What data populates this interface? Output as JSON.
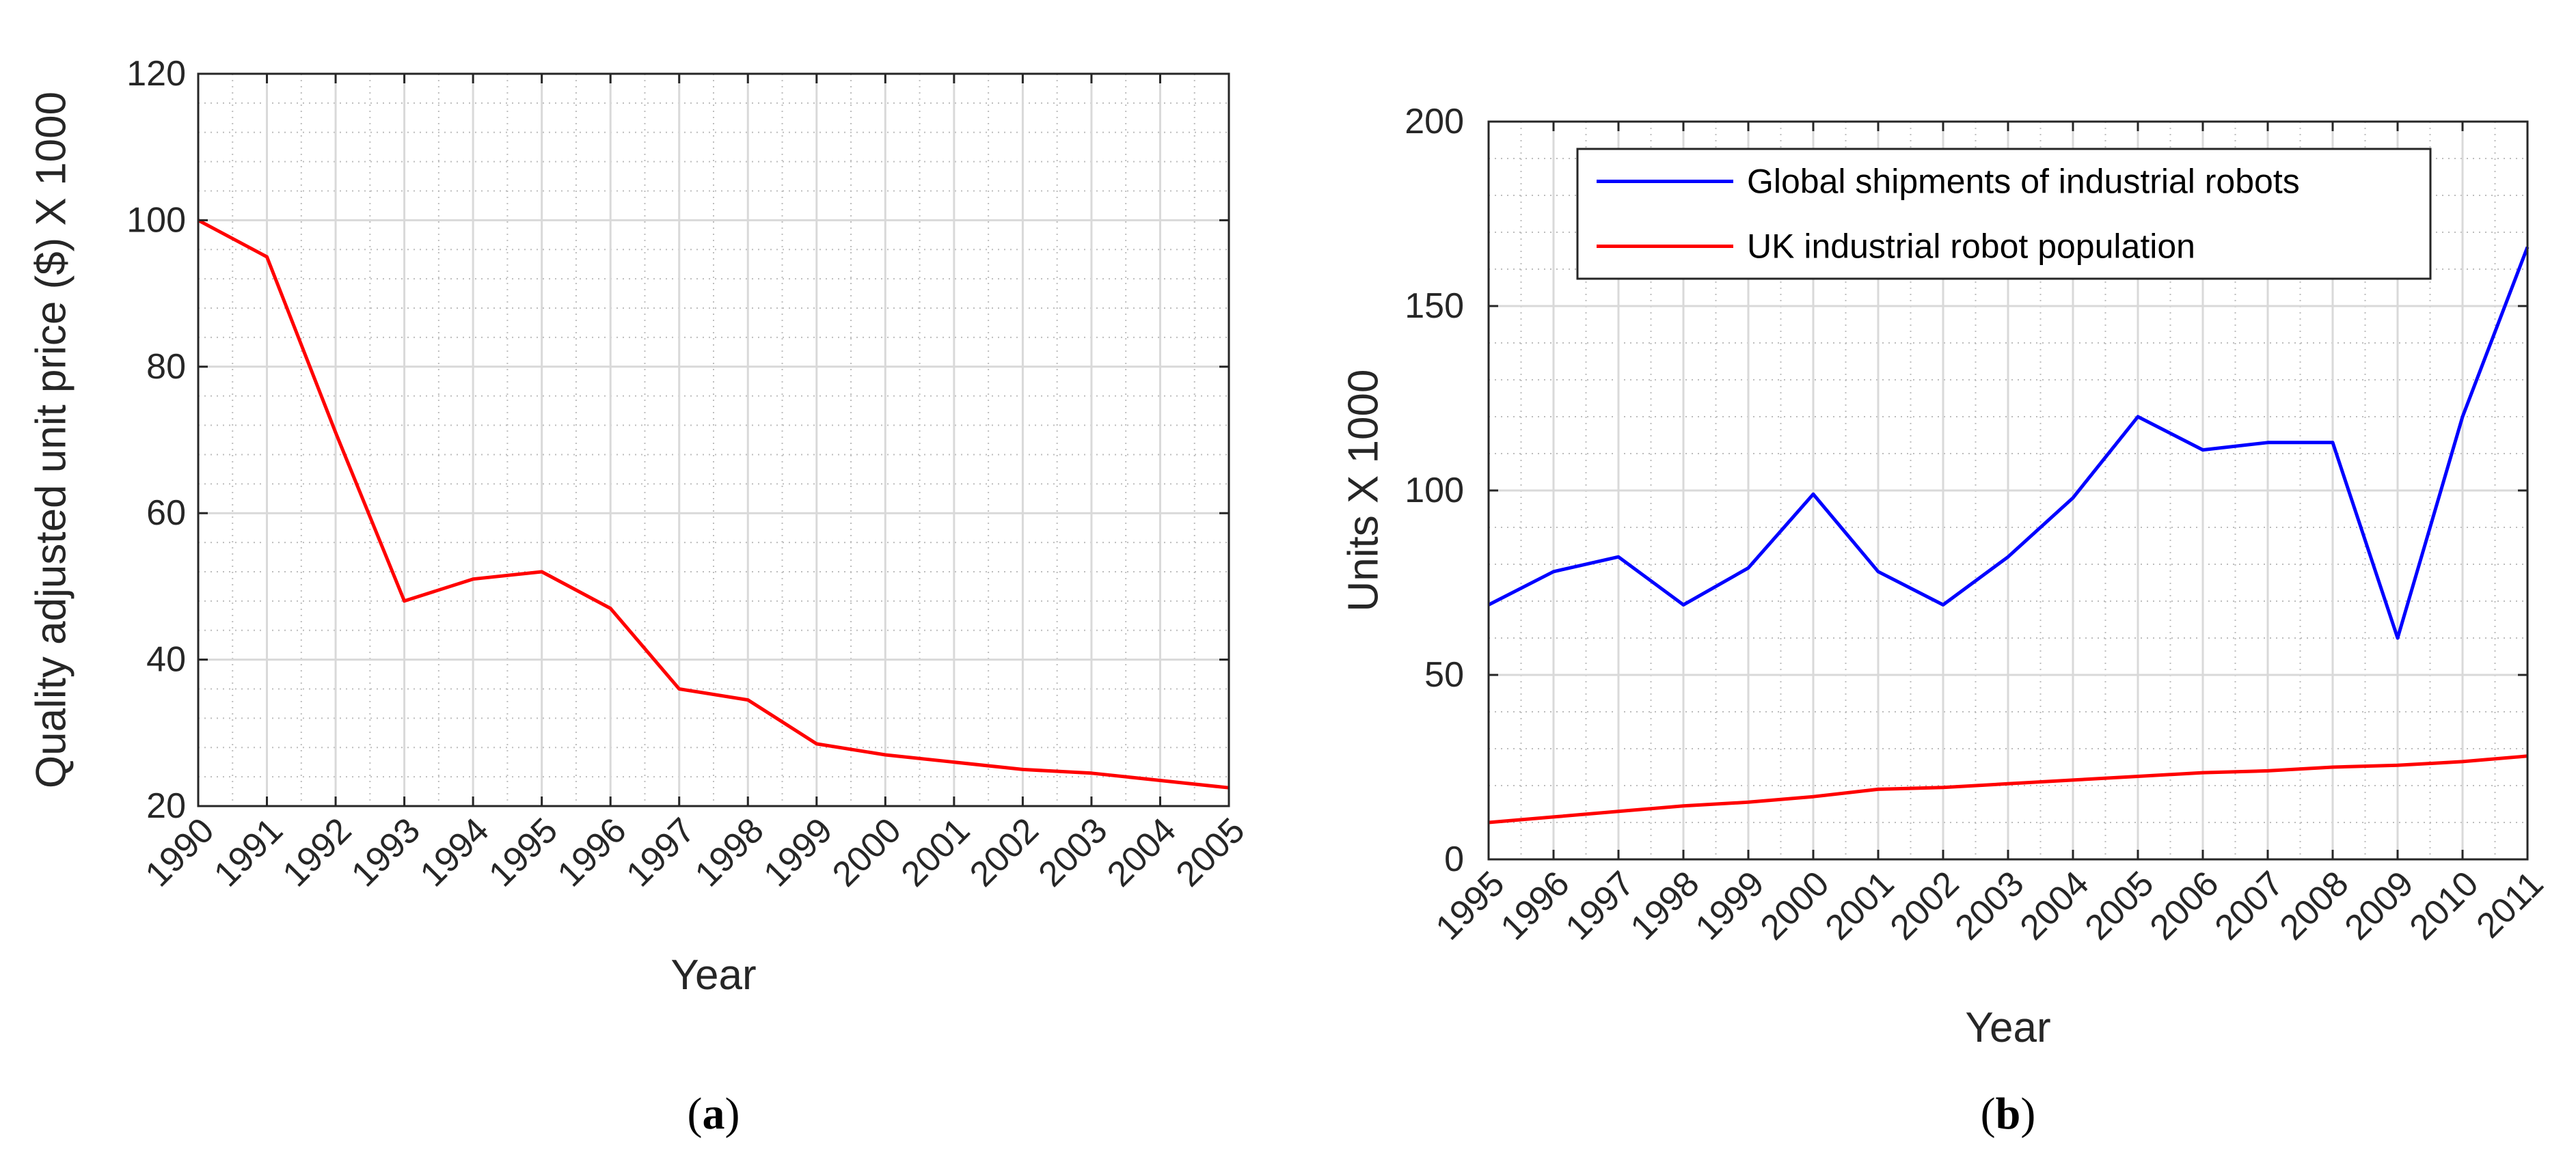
{
  "colors": {
    "red_series": "#ff0000",
    "blue_series": "#0000ff",
    "major_grid": "#d9d9d9",
    "minor_grid": "#bdbdbd",
    "axis": "#262626"
  },
  "chart_data": [
    {
      "type": "line",
      "panel_label": "(a)",
      "panel_letter": "a",
      "xlabel": "Year",
      "ylabel": "Quality adjusted unit price ($) X 1000",
      "xlim": [
        1990,
        2005
      ],
      "ylim": [
        20,
        120
      ],
      "x_ticks": [
        1990,
        1991,
        1992,
        1993,
        1994,
        1995,
        1996,
        1997,
        1998,
        1999,
        2000,
        2001,
        2002,
        2003,
        2004,
        2005
      ],
      "x_tick_labels": [
        "1990",
        "1991",
        "1992",
        "1993",
        "1994",
        "1995",
        "1996",
        "1997",
        "1998",
        "1999",
        "2000",
        "2001",
        "2002",
        "2003",
        "2004",
        "2005"
      ],
      "y_ticks": [
        20,
        40,
        60,
        80,
        100,
        120
      ],
      "y_tick_labels": [
        "20",
        "40",
        "60",
        "80",
        "100",
        "120"
      ],
      "grid": true,
      "minor_grid": true,
      "legend": null,
      "series": [
        {
          "color": "#ff0000",
          "x": [
            1990,
            1991,
            1992,
            1993,
            1994,
            1995,
            1996,
            1997,
            1998,
            1999,
            2000,
            2001,
            2002,
            2003,
            2004,
            2005
          ],
          "values": [
            100,
            95,
            71,
            48,
            51,
            52,
            47,
            36,
            34.5,
            28.5,
            27,
            26,
            25,
            24.5,
            23.5,
            22.5
          ]
        }
      ]
    },
    {
      "type": "line",
      "panel_label": "(b)",
      "panel_letter": "b",
      "xlabel": "Year",
      "ylabel": "Units X 1000",
      "xlim": [
        1995,
        2011
      ],
      "ylim": [
        0,
        200
      ],
      "x_ticks": [
        1995,
        1996,
        1997,
        1998,
        1999,
        2000,
        2001,
        2002,
        2003,
        2004,
        2005,
        2006,
        2007,
        2008,
        2009,
        2010,
        2011
      ],
      "x_tick_labels": [
        "1995",
        "1996",
        "1997",
        "1998",
        "1999",
        "2000",
        "2001",
        "2002",
        "2003",
        "2004",
        "2005",
        "2006",
        "2007",
        "2008",
        "2009",
        "2010",
        "2011"
      ],
      "y_ticks": [
        0,
        50,
        100,
        150,
        200
      ],
      "y_tick_labels": [
        "0",
        "50",
        "100",
        "150",
        "200"
      ],
      "grid": true,
      "minor_grid": true,
      "legend": "top-left",
      "series": [
        {
          "name": "Global shipments of industrial robots",
          "color": "#0000ff",
          "x": [
            1995,
            1996,
            1997,
            1998,
            1999,
            2000,
            2001,
            2002,
            2003,
            2004,
            2005,
            2006,
            2007,
            2008,
            2009,
            2010,
            2011
          ],
          "values": [
            69,
            78,
            82,
            69,
            79,
            99,
            78,
            69,
            82,
            98,
            120,
            111,
            113,
            113,
            60,
            120,
            166
          ]
        },
        {
          "name": "UK industrial robot population",
          "color": "#ff0000",
          "x": [
            1995,
            1996,
            1997,
            1998,
            1999,
            2000,
            2001,
            2002,
            2003,
            2004,
            2005,
            2006,
            2007,
            2008,
            2009,
            2010,
            2011
          ],
          "values": [
            10,
            11.5,
            13,
            14.5,
            15.5,
            17,
            19,
            19.5,
            20.5,
            21.5,
            22.5,
            23.5,
            24,
            25,
            25.5,
            26.5,
            28
          ]
        }
      ]
    }
  ]
}
